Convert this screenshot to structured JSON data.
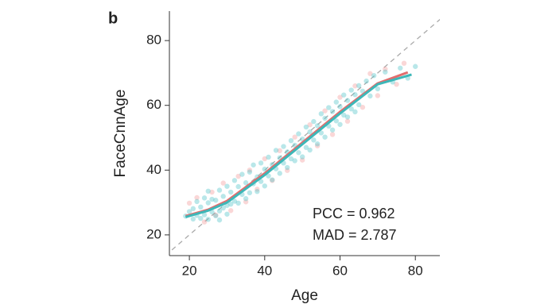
{
  "chart_data": {
    "type": "scatter",
    "panel_label": "b",
    "x_label": "Age",
    "y_label": "FaceCnnAge",
    "annotations": [
      "PCC = 0.962",
      "MAD = 2.787"
    ],
    "xlim": [
      14.7,
      86.5
    ],
    "ylim": [
      13.6,
      89.1
    ],
    "xticks": [
      20,
      40,
      60,
      80
    ],
    "yticks": [
      20,
      40,
      60,
      80
    ],
    "identity_line": true,
    "series": [
      {
        "color": "#f29a9a",
        "x": [
          20,
          22,
          24,
          26,
          27,
          29,
          31,
          33,
          35,
          36,
          38,
          40,
          42,
          44,
          46,
          48,
          50,
          52,
          54,
          56,
          58,
          60,
          62,
          64,
          66,
          68,
          70,
          72,
          75,
          77
        ],
        "values": [
          29.8,
          31.5,
          24.0,
          33.2,
          26.1,
          36.0,
          27.5,
          38.1,
          30.2,
          40.0,
          34.1,
          43.5,
          36.8,
          46.0,
          39.9,
          50.2,
          43.1,
          54.0,
          47.5,
          58.3,
          51.0,
          62.5,
          55.1,
          66.0,
          59.4,
          69.8,
          63.0,
          71.2,
          66.5,
          73.0
        ]
      },
      {
        "color": "#4fc4c8",
        "x": [
          19,
          20,
          21,
          21,
          22,
          22,
          23,
          23,
          24,
          24,
          25,
          25,
          25,
          26,
          26,
          27,
          27,
          28,
          28,
          28,
          29,
          29,
          30,
          30,
          30,
          31,
          31,
          32,
          32,
          33,
          33,
          34,
          34,
          35,
          35,
          36,
          36,
          37,
          37,
          38,
          38,
          39,
          39,
          40,
          40,
          41,
          41,
          42,
          42,
          43,
          43,
          44,
          44,
          45,
          45,
          46,
          46,
          47,
          47,
          48,
          48,
          49,
          49,
          50,
          50,
          51,
          51,
          52,
          52,
          53,
          53,
          54,
          54,
          55,
          55,
          56,
          56,
          57,
          57,
          58,
          58,
          59,
          59,
          60,
          60,
          61,
          61,
          62,
          62,
          63,
          63,
          64,
          64,
          65,
          65,
          66,
          67,
          68,
          69,
          70,
          72,
          74,
          76,
          78,
          80
        ],
        "values": [
          25.8,
          27.2,
          24.9,
          28.1,
          26.0,
          30.3,
          25.1,
          28.6,
          31.4,
          26.2,
          24.8,
          29.9,
          33.5,
          27.1,
          31.0,
          25.9,
          30.7,
          33.8,
          27.4,
          24.6,
          31.9,
          28.3,
          35.0,
          29.1,
          26.4,
          33.2,
          29.5,
          36.8,
          30.4,
          34.9,
          29.8,
          38.7,
          32.5,
          36.1,
          31.2,
          39.4,
          33.0,
          35.8,
          41.6,
          37.9,
          33.4,
          42.2,
          36.5,
          40.3,
          35.1,
          44.0,
          38.2,
          41.7,
          37.0,
          46.1,
          40.4,
          43.8,
          39.0,
          47.3,
          42.2,
          45.6,
          40.8,
          49.1,
          43.5,
          47.7,
          42.9,
          51.2,
          45.4,
          49.6,
          44.1,
          53.3,
          47.0,
          51.8,
          46.2,
          55.0,
          49.3,
          53.7,
          48.1,
          57.4,
          51.5,
          56.0,
          50.2,
          59.3,
          53.6,
          58.1,
          52.4,
          61.0,
          55.2,
          59.6,
          54.1,
          63.2,
          57.0,
          61.5,
          56.4,
          64.7,
          58.9,
          63.3,
          58.0,
          66.1,
          60.2,
          64.4,
          67.5,
          62.9,
          69.2,
          65.1,
          70.3,
          67.2,
          71.5,
          68.4,
          72.0
        ]
      }
    ],
    "fits": [
      {
        "color": "#e26d6d",
        "x": [
          19,
          25,
          30,
          40,
          50,
          60,
          70,
          78
        ],
        "values": [
          25.8,
          27.8,
          30.5,
          39,
          48.5,
          58,
          66.8,
          70.2
        ]
      },
      {
        "color": "#3db7b8",
        "x": [
          19,
          25,
          30,
          40,
          50,
          60,
          70,
          79
        ],
        "values": [
          25.5,
          27.5,
          30,
          38.5,
          48,
          57.5,
          66.5,
          69.5
        ]
      }
    ]
  }
}
